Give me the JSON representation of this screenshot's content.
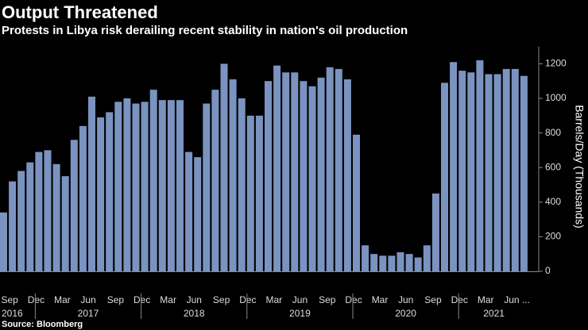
{
  "chart_data": {
    "type": "bar",
    "title": "Output Threatened",
    "subtitle": "Protests in Libya risk derailing recent stability in nation's oil production",
    "source": "Source: Bloomberg",
    "y_label": "Barrels/Day (Thousands)",
    "color": "#7b93c0",
    "categories": [
      "Sep",
      null,
      null,
      "Dec",
      null,
      null,
      "Mar",
      null,
      null,
      "Jun",
      null,
      null,
      "Sep",
      null,
      null,
      "Dec",
      null,
      null,
      "Mar",
      null,
      null,
      "Jun",
      null,
      null,
      "Sep",
      null,
      null,
      "Dec",
      null,
      null,
      "Mar",
      null,
      null,
      "Jun",
      null,
      null,
      "Sep",
      null,
      null,
      "Dec",
      null,
      null,
      "Mar",
      null,
      null,
      "Jun",
      null,
      null,
      "Sep",
      null,
      null,
      "Dec",
      null,
      null,
      "Mar",
      null,
      null,
      "Jun ...",
      null,
      null
    ],
    "years": [
      "2016",
      "2017",
      "2018",
      "2019",
      "2020",
      "2021"
    ],
    "values": [
      340,
      520,
      580,
      630,
      690,
      700,
      620,
      550,
      760,
      840,
      1010,
      890,
      920,
      980,
      1000,
      970,
      980,
      1050,
      990,
      990,
      990,
      690,
      660,
      970,
      1050,
      1200,
      1110,
      1000,
      900,
      900,
      1100,
      1190,
      1150,
      1150,
      1100,
      1070,
      1120,
      1180,
      1170,
      1110,
      790,
      150,
      100,
      90,
      90,
      110,
      100,
      80,
      150,
      450,
      1090,
      1210,
      1160,
      1150,
      1220,
      1140,
      1140,
      1170,
      1170,
      1130
    ],
    "ylim": [
      0,
      1300
    ],
    "yticks": [
      0,
      200,
      400,
      600,
      800,
      1000,
      1200
    ]
  }
}
